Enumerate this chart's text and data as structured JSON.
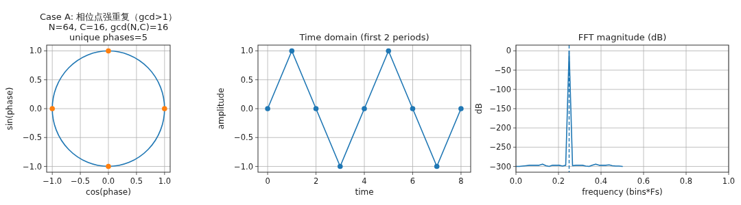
{
  "chart_data": [
    {
      "type": "scatter",
      "title": "Case A: 相位点强重复（gcd>1）\nN=64, C=16, gcd(N,C)=16\nunique phases=5",
      "xlabel": "cos(phase)",
      "ylabel": "sin(phase)",
      "grid": true,
      "xlim": [
        -1.1,
        1.1
      ],
      "ylim": [
        -1.1,
        1.1
      ],
      "xticks": [
        {
          "value": -1,
          "label": "−1.0"
        },
        {
          "value": -0.5,
          "label": "−0.5"
        },
        {
          "value": 0,
          "label": "0.0"
        },
        {
          "value": 0.5,
          "label": "0.5"
        },
        {
          "value": 1,
          "label": "1.0"
        }
      ],
      "yticks": [
        {
          "value": -1,
          "label": "−1.0"
        },
        {
          "value": -0.5,
          "label": "−0.5"
        },
        {
          "value": 0,
          "label": "0.0"
        },
        {
          "value": 0.5,
          "label": "0.5"
        },
        {
          "value": 1,
          "label": "1.0"
        }
      ],
      "series": [
        {
          "color": "#ff7f0e",
          "marker": "circle",
          "x": [
            1,
            0,
            -1,
            0
          ],
          "values": [
            0,
            1,
            0,
            -1
          ]
        }
      ]
    },
    {
      "type": "line",
      "title": "Time domain (first 2 periods)",
      "xlabel": "time",
      "ylabel": "amplitude",
      "grid": true,
      "marker": "circle",
      "xlim": [
        -0.4,
        8.4
      ],
      "ylim": [
        -1.1,
        1.1
      ],
      "xticks": [
        0,
        2,
        4,
        6,
        8
      ],
      "yticks": [
        {
          "value": -1,
          "label": "−1.0"
        },
        {
          "value": -0.5,
          "label": "−0.5"
        },
        {
          "value": 0,
          "label": "0.0"
        },
        {
          "value": 0.5,
          "label": "0.5"
        },
        {
          "value": 1,
          "label": "1.0"
        }
      ],
      "series": [
        {
          "color": "#1f77b4",
          "x": [
            0,
            1,
            2,
            3,
            4,
            5,
            6,
            7,
            8
          ],
          "values": [
            0,
            1,
            0,
            -1,
            0,
            1,
            0,
            -1,
            0
          ]
        }
      ]
    },
    {
      "type": "line",
      "title": "FFT magnitude (dB)",
      "xlabel": "frequency (bins*Fs)",
      "ylabel": "dB",
      "grid": true,
      "xlim": [
        0,
        1
      ],
      "ylim": [
        -315,
        15
      ],
      "xticks": [
        {
          "value": 0,
          "label": "0.0"
        },
        {
          "value": 0.2,
          "label": "0.2"
        },
        {
          "value": 0.4,
          "label": "0.4"
        },
        {
          "value": 0.6,
          "label": "0.6"
        },
        {
          "value": 0.8,
          "label": "0.8"
        },
        {
          "value": 1,
          "label": "1.0"
        }
      ],
      "yticks": [
        0,
        {
          "value": -50,
          "label": "−50"
        },
        {
          "value": -100,
          "label": "−100"
        },
        {
          "value": -150,
          "label": "−150"
        },
        {
          "value": -200,
          "label": "−200"
        },
        {
          "value": -250,
          "label": "−250"
        },
        {
          "value": -300,
          "label": "−300"
        }
      ],
      "ref_lines": [
        {
          "axis": "x",
          "value": 0.25,
          "color": "#1f77b4",
          "line_style": "dashed"
        }
      ],
      "series": [
        {
          "color": "#1f77b4",
          "x": [
            0,
            0.016,
            0.031,
            0.047,
            0.063,
            0.078,
            0.094,
            0.109,
            0.125,
            0.141,
            0.156,
            0.172,
            0.188,
            0.203,
            0.219,
            0.234,
            0.25,
            0.266,
            0.281,
            0.297,
            0.313,
            0.328,
            0.344,
            0.359,
            0.375,
            0.391,
            0.406,
            0.422,
            0.438,
            0.453,
            0.469,
            0.484,
            0.5
          ],
          "values": [
            -300,
            -300,
            -299,
            -298,
            -297,
            -297,
            -297,
            -297,
            -294,
            -298,
            -300,
            -297,
            -297,
            -297,
            -299,
            -297,
            0,
            -298,
            -297,
            -297,
            -297,
            -299,
            -300,
            -297,
            -294,
            -297,
            -297,
            -297,
            -296,
            -298,
            -299,
            -299,
            -300
          ]
        }
      ]
    }
  ]
}
